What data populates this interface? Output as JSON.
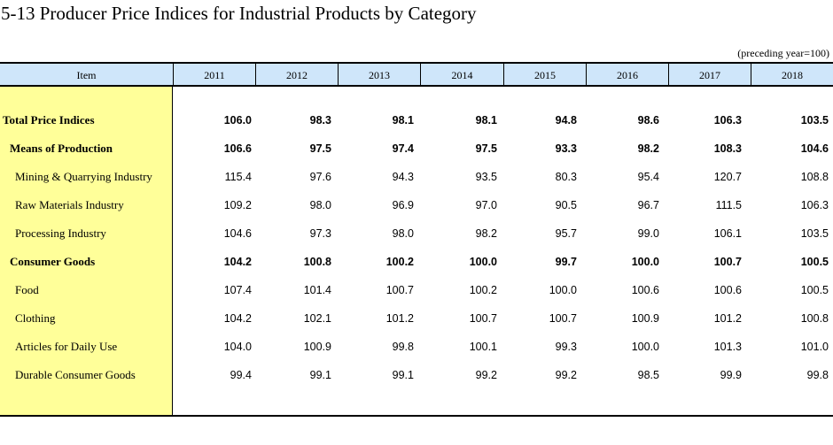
{
  "title": "5-13  Producer Price Indices for Industrial Products by Category",
  "unit_note": "(preceding year=100)",
  "header": {
    "item_label": "Item",
    "years": [
      "2011",
      "2012",
      "2013",
      "2014",
      "2015",
      "2016",
      "2017",
      "2018"
    ]
  },
  "rows": [
    {
      "label": "Total Price Indices",
      "indent": 0,
      "bold": true,
      "values": [
        "106.0",
        "98.3",
        "98.1",
        "98.1",
        "94.8",
        "98.6",
        "106.3",
        "103.5"
      ]
    },
    {
      "label": "Means of Production",
      "indent": 1,
      "bold": true,
      "values": [
        "106.6",
        "97.5",
        "97.4",
        "97.5",
        "93.3",
        "98.2",
        "108.3",
        "104.6"
      ]
    },
    {
      "label": "Mining & Quarrying Industry",
      "indent": 2,
      "bold": false,
      "values": [
        "115.4",
        "97.6",
        "94.3",
        "93.5",
        "80.3",
        "95.4",
        "120.7",
        "108.8"
      ]
    },
    {
      "label": "Raw Materials Industry",
      "indent": 2,
      "bold": false,
      "values": [
        "109.2",
        "98.0",
        "96.9",
        "97.0",
        "90.5",
        "96.7",
        "111.5",
        "106.3"
      ]
    },
    {
      "label": "Processing Industry",
      "indent": 2,
      "bold": false,
      "values": [
        "104.6",
        "97.3",
        "98.0",
        "98.2",
        "95.7",
        "99.0",
        "106.1",
        "103.5"
      ]
    },
    {
      "label": "Consumer Goods",
      "indent": 1,
      "bold": true,
      "values": [
        "104.2",
        "100.8",
        "100.2",
        "100.0",
        "99.7",
        "100.0",
        "100.7",
        "100.5"
      ]
    },
    {
      "label": "Food",
      "indent": 2,
      "bold": false,
      "values": [
        "107.4",
        "101.4",
        "100.7",
        "100.2",
        "100.0",
        "100.6",
        "100.6",
        "100.5"
      ]
    },
    {
      "label": "Clothing",
      "indent": 2,
      "bold": false,
      "values": [
        "104.2",
        "102.1",
        "101.2",
        "100.7",
        "100.7",
        "100.9",
        "101.2",
        "100.8"
      ]
    },
    {
      "label": "Articles for Daily Use",
      "indent": 2,
      "bold": false,
      "values": [
        "104.0",
        "100.9",
        "99.8",
        "100.1",
        "99.3",
        "100.0",
        "101.3",
        "101.0"
      ]
    },
    {
      "label": "Durable Consumer Goods",
      "indent": 2,
      "bold": false,
      "values": [
        "99.4",
        "99.1",
        "99.1",
        "99.2",
        "99.2",
        "98.5",
        "99.9",
        "99.8"
      ]
    }
  ]
}
